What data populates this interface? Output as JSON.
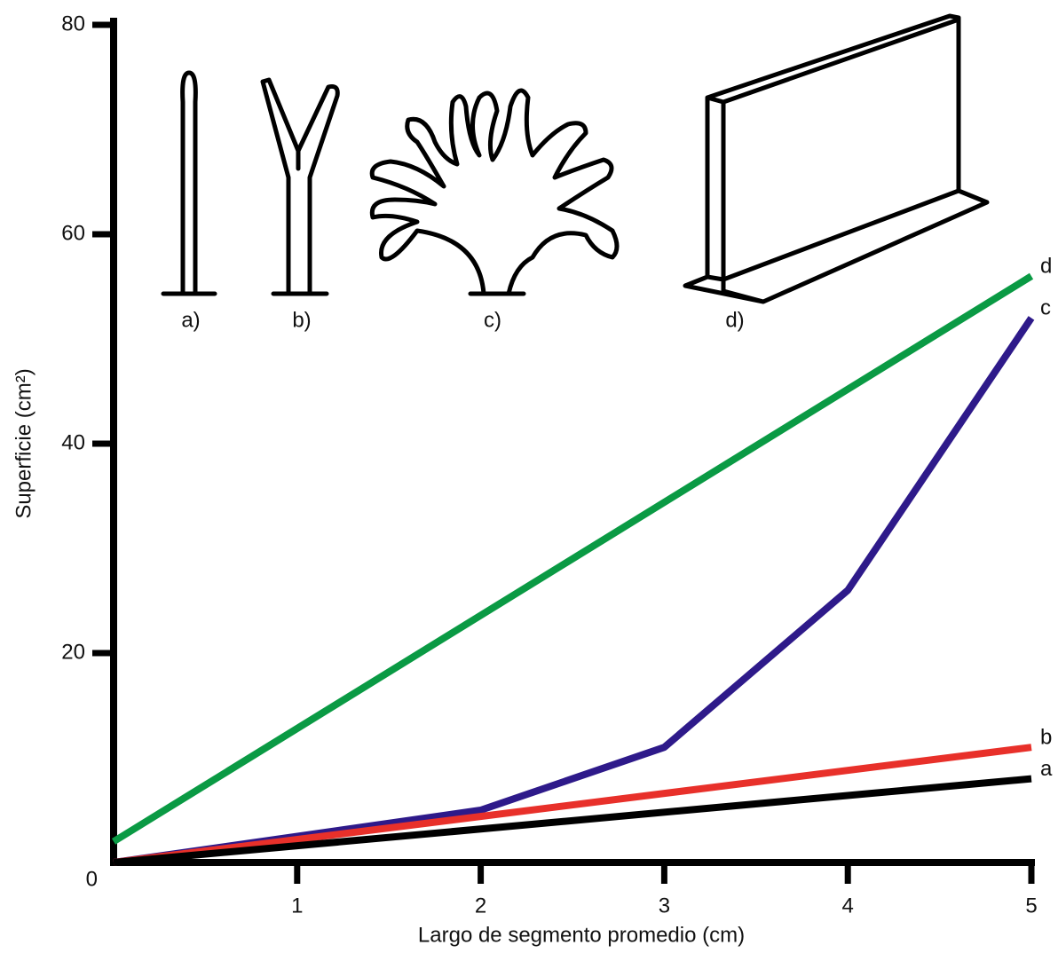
{
  "chart_data": {
    "type": "line",
    "x_label": "Largo de segmento promedio (cm)",
    "y_label": "Superficie (cm²)",
    "annotations": [
      "a)",
      "b)",
      "c)",
      "d)"
    ],
    "xlim": [
      0,
      5
    ],
    "ylim": [
      0,
      80
    ],
    "xticks": [
      1,
      2,
      3,
      4,
      5
    ],
    "yticks": [
      0,
      20,
      40,
      60,
      80
    ],
    "series": [
      {
        "name": "d",
        "color": "#0a9a44",
        "x": [
          0,
          5
        ],
        "values": [
          2,
          56
        ]
      },
      {
        "name": "c",
        "color": "#2e1a8a",
        "x": [
          0,
          2,
          3,
          4,
          5
        ],
        "values": [
          0,
          5,
          11,
          26,
          52
        ]
      },
      {
        "name": "b",
        "color": "#e8302a",
        "x": [
          0,
          5
        ],
        "values": [
          0,
          11
        ]
      },
      {
        "name": "a",
        "color": "#000000",
        "x": [
          0,
          5
        ],
        "values": [
          0,
          8
        ]
      }
    ]
  }
}
